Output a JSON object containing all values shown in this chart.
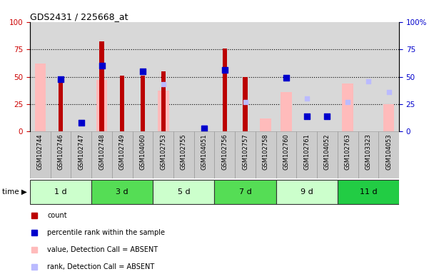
{
  "title": "GDS2431 / 225668_at",
  "samples": [
    "GSM102744",
    "GSM102746",
    "GSM102747",
    "GSM102748",
    "GSM102749",
    "GSM104060",
    "GSM102753",
    "GSM102755",
    "GSM104051",
    "GSM102756",
    "GSM102757",
    "GSM102758",
    "GSM102760",
    "GSM102761",
    "GSM104052",
    "GSM102763",
    "GSM103323",
    "GSM104053"
  ],
  "time_groups": [
    {
      "label": "1 d",
      "start": 0,
      "end": 3,
      "color": "#ccffcc"
    },
    {
      "label": "3 d",
      "start": 3,
      "end": 6,
      "color": "#55dd55"
    },
    {
      "label": "5 d",
      "start": 6,
      "end": 9,
      "color": "#ccffcc"
    },
    {
      "label": "7 d",
      "start": 9,
      "end": 12,
      "color": "#55dd55"
    },
    {
      "label": "9 d",
      "start": 12,
      "end": 15,
      "color": "#ccffcc"
    },
    {
      "label": "11 d",
      "start": 15,
      "end": 18,
      "color": "#22cc44"
    }
  ],
  "count": [
    null,
    50,
    null,
    82,
    51,
    51,
    55,
    null,
    null,
    76,
    50,
    null,
    null,
    null,
    null,
    null,
    null,
    null
  ],
  "percentile_rank": [
    null,
    48,
    8,
    60,
    null,
    55,
    null,
    null,
    3,
    56,
    null,
    null,
    49,
    14,
    14,
    null,
    null,
    null
  ],
  "value_absent": [
    62,
    null,
    null,
    47,
    null,
    null,
    37,
    null,
    null,
    null,
    null,
    12,
    36,
    null,
    null,
    44,
    null,
    25
  ],
  "rank_absent": [
    null,
    null,
    null,
    null,
    null,
    null,
    43,
    null,
    4,
    null,
    27,
    null,
    null,
    30,
    13,
    27,
    46,
    36
  ],
  "ylim": [
    0,
    100
  ],
  "dotted_lines": [
    25,
    50,
    75
  ],
  "chart_bg": "#d8d8d8",
  "label_bg": "#cccccc",
  "bar_color_count": "#bb0000",
  "bar_color_percentile": "#0000cc",
  "bar_color_value_absent": "#ffbbbb",
  "bar_color_rank_absent": "#bbbbff",
  "left_ytick_color": "#cc0000",
  "right_ytick_color": "#0000cc"
}
